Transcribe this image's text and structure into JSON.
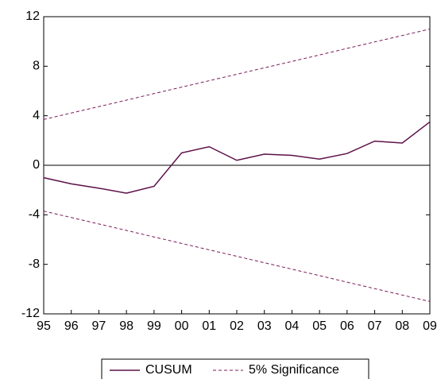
{
  "chart_data": {
    "type": "line",
    "categories": [
      "95",
      "96",
      "97",
      "98",
      "99",
      "00",
      "01",
      "02",
      "03",
      "04",
      "05",
      "06",
      "07",
      "08",
      "09"
    ],
    "series": [
      {
        "name": "CUSUM",
        "color": "#5c1048",
        "dashed": false,
        "values": [
          -1.0,
          -1.5,
          -1.85,
          -2.25,
          -1.7,
          1.0,
          1.5,
          0.4,
          0.9,
          0.8,
          0.5,
          0.95,
          1.95,
          1.8,
          3.5
        ]
      },
      {
        "name": "5% Significance",
        "color": "#7a1a58",
        "dashed": true,
        "values": [
          3.7,
          4.22,
          4.74,
          5.26,
          5.79,
          6.31,
          6.83,
          7.35,
          7.87,
          8.39,
          8.91,
          9.44,
          9.96,
          10.48,
          11.0
        ],
        "lower": [
          -3.7,
          -4.22,
          -4.74,
          -5.26,
          -5.79,
          -6.31,
          -6.83,
          -7.35,
          -7.87,
          -8.39,
          -8.91,
          -9.44,
          -9.96,
          -10.48,
          -11.0
        ]
      }
    ],
    "ylim": [
      -12,
      12
    ],
    "yticks": [
      12,
      8,
      4,
      0,
      -4,
      -8,
      -12
    ],
    "zero_line": true
  }
}
